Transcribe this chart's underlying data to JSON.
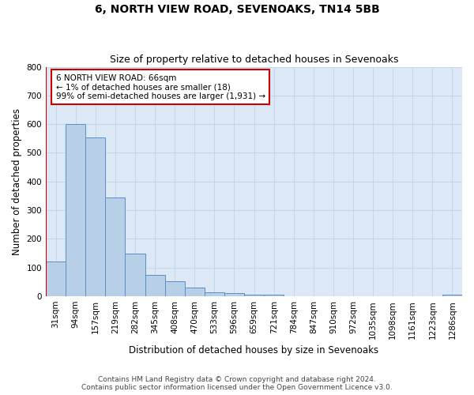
{
  "title": "6, NORTH VIEW ROAD, SEVENOAKS, TN14 5BB",
  "subtitle": "Size of property relative to detached houses in Sevenoaks",
  "xlabel": "Distribution of detached houses by size in Sevenoaks",
  "ylabel": "Number of detached properties",
  "categories": [
    "31sqm",
    "94sqm",
    "157sqm",
    "219sqm",
    "282sqm",
    "345sqm",
    "408sqm",
    "470sqm",
    "533sqm",
    "596sqm",
    "659sqm",
    "721sqm",
    "784sqm",
    "847sqm",
    "910sqm",
    "972sqm",
    "1035sqm",
    "1098sqm",
    "1161sqm",
    "1223sqm",
    "1286sqm"
  ],
  "values": [
    120,
    600,
    555,
    345,
    148,
    75,
    52,
    30,
    13,
    10,
    5,
    5,
    0,
    0,
    0,
    0,
    0,
    0,
    0,
    0,
    5
  ],
  "bar_color": "#b8cfe8",
  "bar_edge_color": "#5b8dc8",
  "highlight_line_color": "#cc0000",
  "annotation_line1": "6 NORTH VIEW ROAD: 66sqm",
  "annotation_line2": "← 1% of detached houses are smaller (18)",
  "annotation_line3": "99% of semi-detached houses are larger (1,931) →",
  "annotation_box_color": "#ffffff",
  "annotation_box_edge": "#cc0000",
  "ylim": [
    0,
    800
  ],
  "yticks": [
    0,
    100,
    200,
    300,
    400,
    500,
    600,
    700,
    800
  ],
  "background_color": "#ffffff",
  "axes_bg_color": "#dce8f5",
  "grid_color": "#c0d4e8",
  "footer_line1": "Contains HM Land Registry data © Crown copyright and database right 2024.",
  "footer_line2": "Contains public sector information licensed under the Open Government Licence v3.0.",
  "title_fontsize": 10,
  "subtitle_fontsize": 9,
  "xlabel_fontsize": 8.5,
  "ylabel_fontsize": 8.5,
  "tick_fontsize": 7.5,
  "annotation_fontsize": 7.5,
  "footer_fontsize": 6.5
}
